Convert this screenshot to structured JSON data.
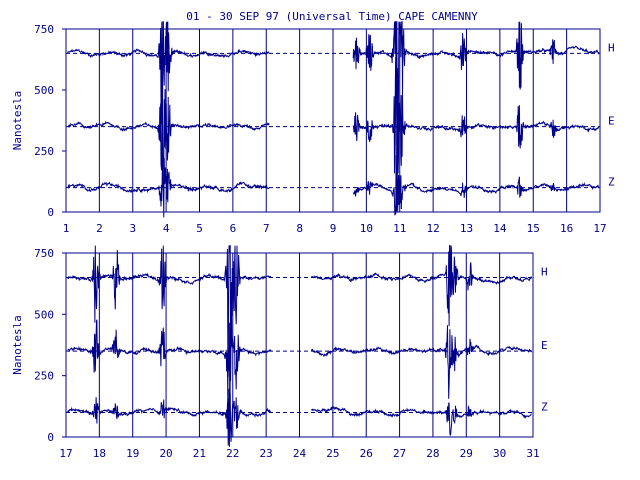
{
  "title": "01 - 30 SEP 97 (Universal Time) CAPE CAMENNY",
  "ylabel": "Nanotesla",
  "colors": {
    "accent": "#00008b",
    "background": "#ffffff"
  },
  "chart_data": [
    {
      "type": "line",
      "xlim": [
        1,
        17
      ],
      "ylim": [
        0,
        750
      ],
      "x_ticks": [
        "1",
        "2",
        "3",
        "4",
        "5",
        "6",
        "7",
        "8",
        "9",
        "10",
        "11",
        "12",
        "13",
        "14",
        "15",
        "16",
        "17"
      ],
      "y_ticks": [
        "0",
        "250",
        "500",
        "750"
      ],
      "reference_lines": [
        {
          "name": "H",
          "y": 650
        },
        {
          "name": "E",
          "y": 350
        },
        {
          "name": "Z",
          "y": 100
        }
      ],
      "data_gaps": [
        [
          7.1,
          9.6
        ]
      ],
      "disturbances": [
        {
          "day": 3.9,
          "amplitude": 300
        },
        {
          "day": 4.05,
          "amplitude": 150
        },
        {
          "day": 9.7,
          "amplitude": 60
        },
        {
          "day": 10.1,
          "amplitude": 70
        },
        {
          "day": 10.9,
          "amplitude": 300
        },
        {
          "day": 11.05,
          "amplitude": 150
        },
        {
          "day": 12.9,
          "amplitude": 70
        },
        {
          "day": 14.6,
          "amplitude": 110
        },
        {
          "day": 15.6,
          "amplitude": 40
        }
      ]
    },
    {
      "type": "line",
      "xlim": [
        17,
        31
      ],
      "ylim": [
        0,
        750
      ],
      "x_ticks": [
        "17",
        "18",
        "19",
        "20",
        "21",
        "22",
        "23",
        "24",
        "25",
        "26",
        "27",
        "28",
        "29",
        "30",
        "31"
      ],
      "y_ticks": [
        "0",
        "250",
        "500",
        "750"
      ],
      "reference_lines": [
        {
          "name": "H",
          "y": 650
        },
        {
          "name": "E",
          "y": 350
        },
        {
          "name": "Z",
          "y": 100
        }
      ],
      "data_gaps": [
        [
          23.15,
          24.35
        ]
      ],
      "disturbances": [
        {
          "day": 17.9,
          "amplitude": 140
        },
        {
          "day": 18.5,
          "amplitude": 90
        },
        {
          "day": 19.9,
          "amplitude": 100
        },
        {
          "day": 21.9,
          "amplitude": 330
        },
        {
          "day": 22.1,
          "amplitude": 140
        },
        {
          "day": 28.5,
          "amplitude": 190
        },
        {
          "day": 28.65,
          "amplitude": 80
        },
        {
          "day": 29.1,
          "amplitude": 50
        }
      ]
    }
  ]
}
